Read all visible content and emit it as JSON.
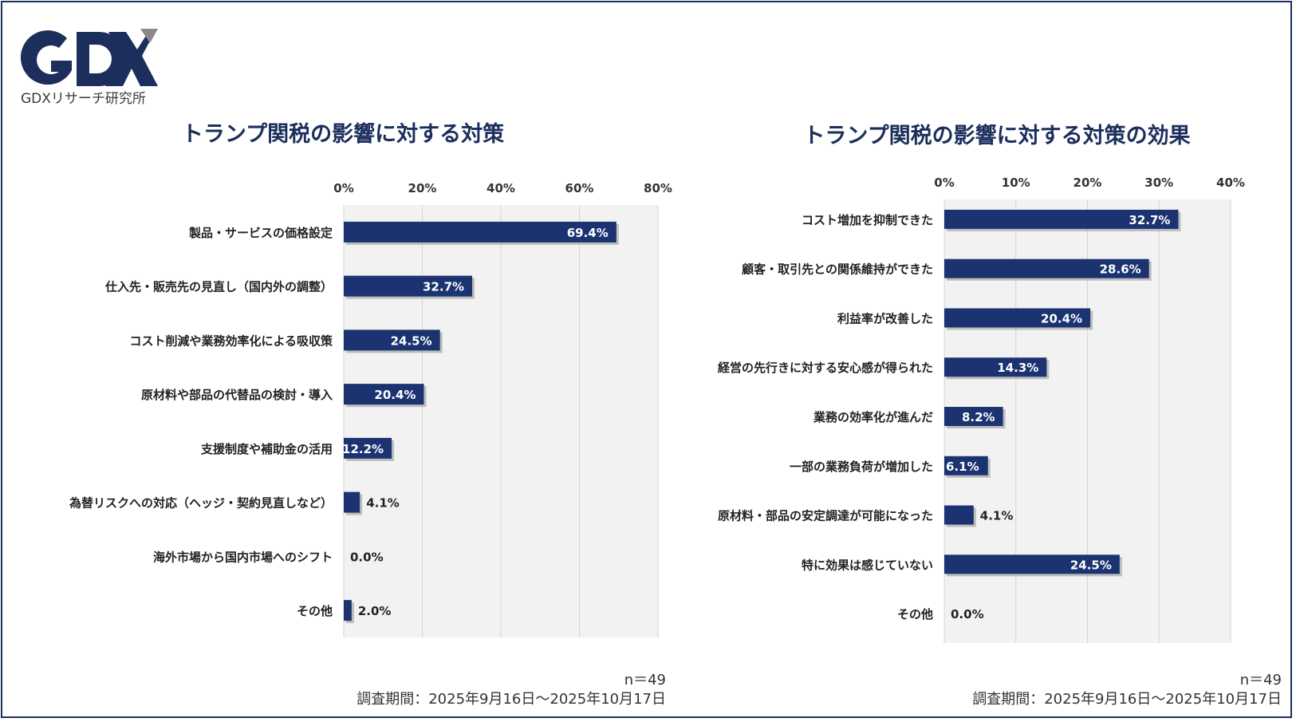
{
  "logo": {
    "mark": "GDX",
    "caption": "GDXリサーチ研究所"
  },
  "colors": {
    "bar": "#1b3370",
    "title": "#1b2e5c",
    "plot_bg": "#f2f2f2",
    "grid": "#d4d4d4",
    "frame": "#1b2e5c"
  },
  "chart_data": [
    {
      "type": "bar",
      "orientation": "horizontal",
      "title": "トランプ関税の影響に対する対策",
      "categories": [
        "製品・サービスの価格設定",
        "仕入先・販売先の見直し（国内外の調整）",
        "コスト削減や業務効率化による吸収策",
        "原材料や部品の代替品の検討・導入",
        "支援制度や補助金の活用",
        "為替リスクへの対応（ヘッジ・契約見直しなど）",
        "海外市場から国内市場へのシフト",
        "その他"
      ],
      "values": [
        69.4,
        32.7,
        24.5,
        20.4,
        12.2,
        4.1,
        0.0,
        2.0
      ],
      "value_labels": [
        "69.4%",
        "32.7%",
        "24.5%",
        "20.4%",
        "12.2%",
        "4.1%",
        "0.0%",
        "2.0%"
      ],
      "xlim": [
        0,
        80
      ],
      "ticks": [
        "0%",
        "20%",
        "40%",
        "60%",
        "80%"
      ],
      "axis_position": "top",
      "n_label": "n＝49",
      "period": "調査期間：2025年9月16日〜2025年10月17日"
    },
    {
      "type": "bar",
      "orientation": "horizontal",
      "title": "トランプ関税の影響に対する対策の効果",
      "categories": [
        "コスト増加を抑制できた",
        "顧客・取引先との関係維持ができた",
        "利益率が改善した",
        "経営の先行きに対する安心感が得られた",
        "業務の効率化が進んだ",
        "一部の業務負荷が増加した",
        "原材料・部品の安定調達が可能になった",
        "特に効果は感じていない",
        "その他"
      ],
      "values": [
        32.7,
        28.6,
        20.4,
        14.3,
        8.2,
        6.1,
        4.1,
        24.5,
        0.0
      ],
      "value_labels": [
        "32.7%",
        "28.6%",
        "20.4%",
        "14.3%",
        "8.2%",
        "6.1%",
        "4.1%",
        "24.5%",
        "0.0%"
      ],
      "xlim": [
        0,
        40
      ],
      "ticks": [
        "0%",
        "10%",
        "20%",
        "30%",
        "40%"
      ],
      "axis_position": "top",
      "n_label": "n＝49",
      "period": "調査期間：2025年9月16日〜2025年10月17日"
    }
  ]
}
